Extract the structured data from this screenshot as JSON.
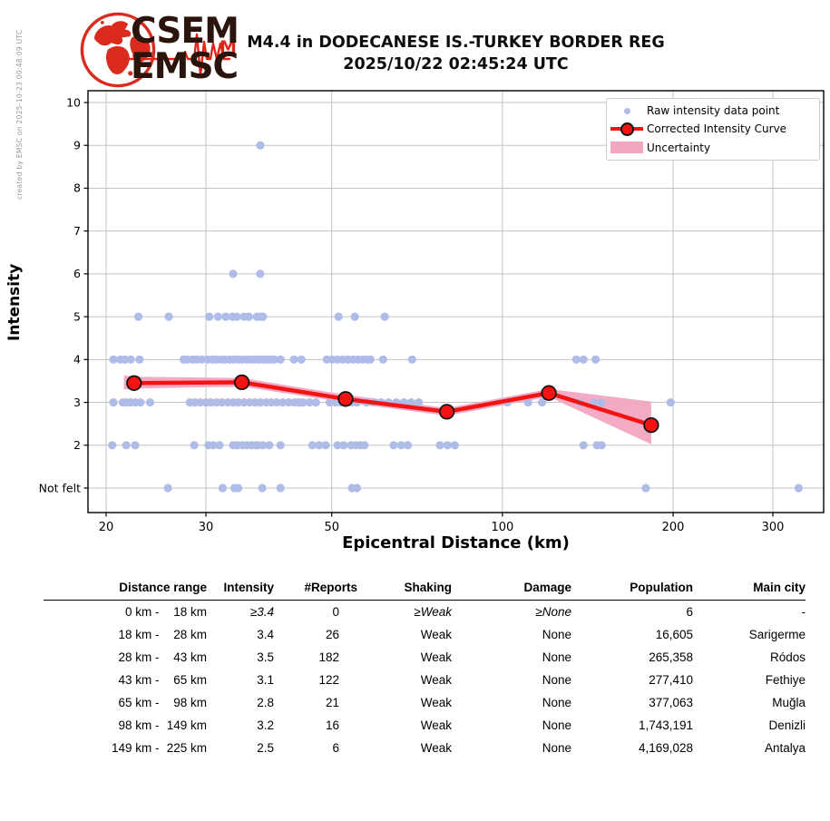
{
  "watermark": "created by EMSC on 2025-10-23 00:48:09 UTC",
  "logo": {
    "line1": "CSEM",
    "line2": "EMSC",
    "magnitude_letter": "M"
  },
  "header": {
    "title_line1": "M4.4 in DODECANESE IS.-TURKEY BORDER REG",
    "title_line2": "2025/10/22 02:45:24 UTC"
  },
  "chart_data": {
    "type": "scatter",
    "title": "",
    "xlabel": "Epicentral Distance (km)",
    "ylabel": "Intensity",
    "x_scale": "log",
    "x_ticks": [
      20,
      30,
      50,
      100,
      200,
      300
    ],
    "xlim_km": [
      18.5,
      370
    ],
    "ylim": [
      0.43,
      10.27
    ],
    "grid": true,
    "y_ticks": [
      {
        "label": "10",
        "value": 10
      },
      {
        "label": "9",
        "value": 9
      },
      {
        "label": "8",
        "value": 8
      },
      {
        "label": "7",
        "value": 7
      },
      {
        "label": "6",
        "value": 6
      },
      {
        "label": "5",
        "value": 5
      },
      {
        "label": "4",
        "value": 4
      },
      {
        "label": "3",
        "value": 3
      },
      {
        "label": "2",
        "value": 2
      },
      {
        "label": "Not felt",
        "value": 1
      }
    ],
    "legend_position": "upper right",
    "legend": [
      {
        "label": "Raw intensity data point",
        "type": "dot"
      },
      {
        "label": "Corrected Intensity Curve",
        "type": "line-marker"
      },
      {
        "label": "Uncertainty",
        "type": "band"
      }
    ],
    "colors": {
      "raw_point": "#AFBCE8",
      "curve": "#F31313",
      "curve_marker_edge": "#111111",
      "band": "#F2A6C2",
      "grid": "#C3C3C3",
      "frame": "#000000"
    },
    "corrected_curve": [
      [
        22.4,
        3.45
      ],
      [
        34.7,
        3.47
      ],
      [
        52.9,
        3.08
      ],
      [
        79.8,
        2.78
      ],
      [
        120.8,
        3.22
      ],
      [
        183,
        2.47
      ]
    ],
    "uncertainty_band": {
      "x": [
        21.5,
        22.4,
        34.7,
        52.9,
        79.8,
        120.8,
        183
      ],
      "upper": [
        3.63,
        3.6,
        3.57,
        3.18,
        2.87,
        3.31,
        3.02
      ],
      "lower": [
        3.3,
        3.32,
        3.37,
        3.0,
        2.69,
        3.13,
        2.02
      ]
    },
    "raw_points": [
      [
        37.4,
        9
      ],
      [
        33.5,
        6
      ],
      [
        37.4,
        6
      ],
      [
        22.8,
        5
      ],
      [
        25.8,
        5
      ],
      [
        30.4,
        5
      ],
      [
        31.5,
        5
      ],
      [
        32.5,
        5
      ],
      [
        33.4,
        5
      ],
      [
        34,
        5
      ],
      [
        35,
        5
      ],
      [
        35.7,
        5
      ],
      [
        36.9,
        5
      ],
      [
        37.4,
        5
      ],
      [
        37.8,
        5
      ],
      [
        51.4,
        5
      ],
      [
        54.9,
        5
      ],
      [
        62,
        5
      ],
      [
        20.6,
        4
      ],
      [
        21.2,
        4
      ],
      [
        21.6,
        4
      ],
      [
        22.1,
        4
      ],
      [
        22.9,
        4
      ],
      [
        27.4,
        4
      ],
      [
        27.8,
        4
      ],
      [
        28.4,
        4
      ],
      [
        28.9,
        4
      ],
      [
        29.5,
        4
      ],
      [
        30.2,
        4
      ],
      [
        30.8,
        4
      ],
      [
        31.3,
        4
      ],
      [
        31.9,
        4
      ],
      [
        32.4,
        4
      ],
      [
        33,
        4
      ],
      [
        33.6,
        4
      ],
      [
        34.2,
        4
      ],
      [
        34.8,
        4
      ],
      [
        35.4,
        4
      ],
      [
        36,
        4
      ],
      [
        36.6,
        4
      ],
      [
        37.2,
        4
      ],
      [
        37.8,
        4
      ],
      [
        38.4,
        4
      ],
      [
        39,
        4
      ],
      [
        39.6,
        4
      ],
      [
        40.6,
        4
      ],
      [
        42.9,
        4
      ],
      [
        44.2,
        4
      ],
      [
        49,
        4
      ],
      [
        50.1,
        4
      ],
      [
        51.2,
        4
      ],
      [
        52.3,
        4
      ],
      [
        53.4,
        4
      ],
      [
        54.5,
        4
      ],
      [
        55.6,
        4
      ],
      [
        56.7,
        4
      ],
      [
        57.8,
        4
      ],
      [
        58.5,
        4
      ],
      [
        61.6,
        4
      ],
      [
        69.3,
        4
      ],
      [
        135,
        4
      ],
      [
        139,
        4
      ],
      [
        146,
        4
      ],
      [
        20.6,
        3
      ],
      [
        21.4,
        3
      ],
      [
        21.7,
        3
      ],
      [
        22.1,
        3
      ],
      [
        22.5,
        3
      ],
      [
        23,
        3
      ],
      [
        23.9,
        3
      ],
      [
        28.1,
        3
      ],
      [
        28.7,
        3
      ],
      [
        29.3,
        3
      ],
      [
        30,
        3
      ],
      [
        30.6,
        3
      ],
      [
        31.3,
        3
      ],
      [
        32,
        3
      ],
      [
        32.8,
        3
      ],
      [
        33.5,
        3
      ],
      [
        34.2,
        3
      ],
      [
        35,
        3
      ],
      [
        35.8,
        3
      ],
      [
        36.6,
        3
      ],
      [
        37.4,
        3
      ],
      [
        38.3,
        3
      ],
      [
        39.1,
        3
      ],
      [
        40,
        3
      ],
      [
        41,
        3
      ],
      [
        42,
        3
      ],
      [
        43,
        3
      ],
      [
        43.7,
        3
      ],
      [
        44.5,
        3
      ],
      [
        45.7,
        3
      ],
      [
        46.9,
        3
      ],
      [
        49.6,
        3
      ],
      [
        50.7,
        3
      ],
      [
        51.8,
        3
      ],
      [
        53,
        3
      ],
      [
        54.2,
        3
      ],
      [
        55.4,
        3
      ],
      [
        57.6,
        3
      ],
      [
        59.3,
        3
      ],
      [
        61.1,
        3
      ],
      [
        63,
        3
      ],
      [
        65,
        3
      ],
      [
        67,
        3
      ],
      [
        69,
        3
      ],
      [
        71.2,
        3
      ],
      [
        102,
        3
      ],
      [
        111,
        3
      ],
      [
        117.5,
        3
      ],
      [
        137,
        3
      ],
      [
        145,
        3
      ],
      [
        149.5,
        3
      ],
      [
        198,
        3
      ],
      [
        20.5,
        2
      ],
      [
        21.7,
        2
      ],
      [
        22.5,
        2
      ],
      [
        28.6,
        2
      ],
      [
        30.3,
        2
      ],
      [
        30.9,
        2
      ],
      [
        31.7,
        2
      ],
      [
        33.5,
        2
      ],
      [
        34.1,
        2
      ],
      [
        34.8,
        2
      ],
      [
        35.4,
        2
      ],
      [
        36.1,
        2
      ],
      [
        36.7,
        2
      ],
      [
        37.1,
        2
      ],
      [
        37.8,
        2
      ],
      [
        38.8,
        2
      ],
      [
        40.6,
        2
      ],
      [
        46.2,
        2
      ],
      [
        47.5,
        2
      ],
      [
        48.8,
        2
      ],
      [
        51.2,
        2
      ],
      [
        52.5,
        2
      ],
      [
        54.1,
        2
      ],
      [
        55.1,
        2
      ],
      [
        56.1,
        2
      ],
      [
        57.1,
        2
      ],
      [
        64.3,
        2
      ],
      [
        66.3,
        2
      ],
      [
        68.1,
        2
      ],
      [
        77.6,
        2
      ],
      [
        80,
        2
      ],
      [
        82.4,
        2
      ],
      [
        139,
        2
      ],
      [
        146.8,
        2
      ],
      [
        149.6,
        2
      ],
      [
        25.7,
        1
      ],
      [
        32.1,
        1
      ],
      [
        33.7,
        1
      ],
      [
        34.2,
        1
      ],
      [
        37.7,
        1
      ],
      [
        40.6,
        1
      ],
      [
        54.3,
        1
      ],
      [
        55.4,
        1
      ],
      [
        179,
        1
      ],
      [
        333,
        1
      ]
    ]
  },
  "table": {
    "headers": [
      "Distance range",
      "Intensity",
      "#Reports",
      "Shaking",
      "Damage",
      "Population",
      "Main city"
    ],
    "rows": [
      {
        "from": "0",
        "to": "18",
        "intensity": "≥3.4",
        "reports": "0",
        "shaking": "≥Weak",
        "damage": "≥None",
        "population": "6",
        "city": "-"
      },
      {
        "from": "18",
        "to": "28",
        "intensity": "3.4",
        "reports": "26",
        "shaking": "Weak",
        "damage": "None",
        "population": "16,605",
        "city": "Sarigerme"
      },
      {
        "from": "28",
        "to": "43",
        "intensity": "3.5",
        "reports": "182",
        "shaking": "Weak",
        "damage": "None",
        "population": "265,358",
        "city": "Ródos"
      },
      {
        "from": "43",
        "to": "65",
        "intensity": "3.1",
        "reports": "122",
        "shaking": "Weak",
        "damage": "None",
        "population": "277,410",
        "city": "Fethiye"
      },
      {
        "from": "65",
        "to": "98",
        "intensity": "2.8",
        "reports": "21",
        "shaking": "Weak",
        "damage": "None",
        "population": "377,063",
        "city": "Muğla"
      },
      {
        "from": "98",
        "to": "149",
        "intensity": "3.2",
        "reports": "16",
        "shaking": "Weak",
        "damage": "None",
        "population": "1,743,191",
        "city": "Denizli"
      },
      {
        "from": "149",
        "to": "225",
        "intensity": "2.5",
        "reports": "6",
        "shaking": "Weak",
        "damage": "None",
        "population": "4,169,028",
        "city": "Antalya"
      }
    ]
  }
}
